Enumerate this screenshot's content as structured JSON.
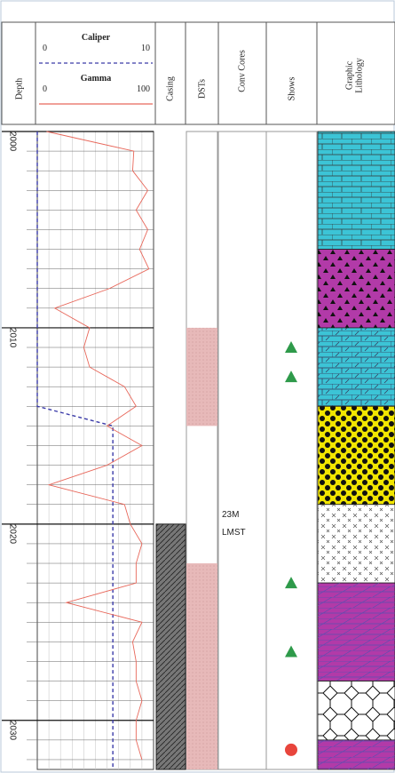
{
  "chart_data": {
    "type": "well-log",
    "depth_label": "Depth",
    "ylim": [
      2000,
      2032.5
    ],
    "yticks": [
      2000,
      2010,
      2020,
      2030
    ],
    "minor_yticks": [
      2001,
      2002,
      2003,
      2004,
      2005,
      2006,
      2007,
      2008,
      2009,
      2011,
      2012,
      2013,
      2014,
      2015,
      2016,
      2017,
      2018,
      2019,
      2021,
      2022,
      2023,
      2024,
      2025,
      2026,
      2027,
      2028,
      2029,
      2031,
      2032
    ],
    "curves": [
      {
        "name": "Caliper",
        "color": "#3a3aa8",
        "dashed": true,
        "xlim": [
          0,
          10
        ],
        "xticks": [
          0,
          10
        ],
        "depths": [
          2000,
          2014,
          2015,
          2032.5
        ],
        "values": [
          0,
          0,
          6.5,
          6.5
        ]
      },
      {
        "name": "Gamma",
        "color": "#e8675a",
        "dashed": false,
        "xlim": [
          0,
          100
        ],
        "xticks": [
          0,
          100
        ],
        "x_grid": [
          10,
          20,
          30,
          40,
          50,
          60,
          70,
          80,
          90
        ],
        "depths": [
          2000,
          2001,
          2002,
          2003,
          2004,
          2005,
          2006,
          2007,
          2008,
          2009,
          2010,
          2011,
          2012,
          2013,
          2014,
          2015,
          2016,
          2017,
          2018,
          2019,
          2020,
          2021,
          2022,
          2023,
          2024,
          2025,
          2026,
          2027,
          2028,
          2029,
          2030,
          2031,
          2032
        ],
        "values": [
          8,
          83,
          82,
          95,
          85,
          95,
          88,
          96,
          62,
          15,
          45,
          40,
          45,
          75,
          85,
          60,
          90,
          60,
          10,
          75,
          80,
          90,
          85,
          85,
          25,
          90,
          82,
          85,
          85,
          90,
          85,
          85,
          90
        ]
      }
    ],
    "casing": {
      "title": "Casing",
      "color": "#777777",
      "intervals": [
        {
          "top": 2020,
          "bottom": 2032.5
        }
      ]
    },
    "dsts": {
      "title": "DSTs",
      "color": "#e7b9b9",
      "intervals": [
        {
          "top": 2010,
          "bottom": 2015
        },
        {
          "top": 2022,
          "bottom": 2032.5
        }
      ]
    },
    "cores": {
      "title": "Conv Cores",
      "labels": [
        {
          "depth": 2020,
          "lines": [
            "23M",
            "LMST"
          ]
        }
      ]
    },
    "shows": {
      "title": "Shows",
      "items": [
        {
          "depth": 2011,
          "symbol": "triangle",
          "color": "#2e9a4a"
        },
        {
          "depth": 2012.5,
          "symbol": "triangle",
          "color": "#2e9a4a"
        },
        {
          "depth": 2023,
          "symbol": "triangle",
          "color": "#2e9a4a"
        },
        {
          "depth": 2026.5,
          "symbol": "triangle",
          "color": "#2e9a4a"
        },
        {
          "depth": 2031.5,
          "symbol": "circle",
          "color": "#e8453c"
        }
      ]
    },
    "lithology": {
      "title": [
        "Graphic",
        "Lithology"
      ],
      "intervals": [
        {
          "top": 2000,
          "bottom": 2006,
          "color": "#3cc4d6",
          "pattern": "brick"
        },
        {
          "top": 2006,
          "bottom": 2010,
          "color": "#b23aa8",
          "pattern": "triangles"
        },
        {
          "top": 2010,
          "bottom": 2014,
          "color": "#3cc4d6",
          "pattern": "dolomite"
        },
        {
          "top": 2014,
          "bottom": 2019,
          "color": "#f2e600",
          "pattern": "dots"
        },
        {
          "top": 2019,
          "bottom": 2023,
          "color": "#ffffff",
          "pattern": "crosses"
        },
        {
          "top": 2023,
          "bottom": 2028,
          "color": "#b23aa8",
          "pattern": "lines"
        },
        {
          "top": 2028,
          "bottom": 2031,
          "color": "#ffffff",
          "pattern": "ovals"
        },
        {
          "top": 2031,
          "bottom": 2032.5,
          "color": "#b23aa8",
          "pattern": "lines"
        }
      ]
    }
  }
}
